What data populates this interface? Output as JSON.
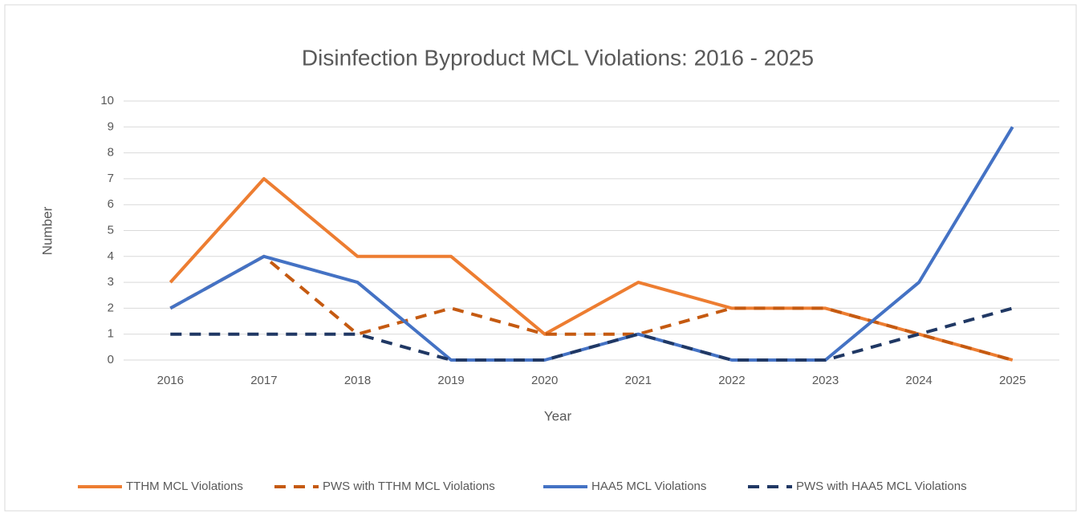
{
  "chart_data": {
    "type": "line",
    "title": "Disinfection Byproduct MCL Violations: 2016 - 2025",
    "x_label": "Year",
    "y_label": "Number",
    "categories": [
      "2016",
      "2017",
      "2018",
      "2019",
      "2020",
      "2021",
      "2022",
      "2023",
      "2024",
      "2025"
    ],
    "series": [
      {
        "name": "TTHM MCL Violations",
        "color": "#ed7d31",
        "dashed": false,
        "values": [
          3,
          7,
          4,
          4,
          1,
          3,
          2,
          2,
          1,
          0
        ]
      },
      {
        "name": "PWS with TTHM MCL Violations",
        "color": "#c55a11",
        "dashed": true,
        "values": [
          2,
          4,
          1,
          2,
          1,
          1,
          2,
          2,
          1,
          0
        ]
      },
      {
        "name": "HAA5 MCL Violations",
        "color": "#4472c4",
        "dashed": false,
        "values": [
          2,
          4,
          3,
          0,
          0,
          1,
          0,
          0,
          3,
          9
        ]
      },
      {
        "name": "PWS with HAA5 MCL Violations",
        "color": "#203864",
        "dashed": true,
        "values": [
          1,
          1,
          1,
          0,
          0,
          1,
          0,
          0,
          1,
          2
        ]
      }
    ],
    "ylim": [
      0,
      10
    ],
    "yticks": [
      0,
      1,
      2,
      3,
      4,
      5,
      6,
      7,
      8,
      9,
      10
    ],
    "grid": true,
    "legend": "bottom"
  }
}
